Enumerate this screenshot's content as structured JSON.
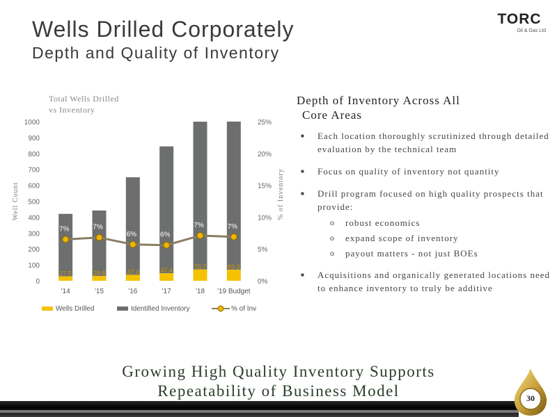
{
  "slide": {
    "title": "Wells Drilled Corporately",
    "subtitle": "Depth and Quality of Inventory",
    "page_number": "30",
    "footer": [
      "Growing High Quality Inventory Supports",
      "Repeatability of Business Model"
    ]
  },
  "logo": {
    "name": "TORC",
    "sub": "Oil & Gas Ltd"
  },
  "right_panel": {
    "heading_line1": "Depth of Inventory Across All",
    "heading_line2": "Core Areas",
    "bullets": [
      "Each location thoroughly scrutinized through detailed evaluation by the technical team",
      "Focus on quality of inventory not quantity",
      "Drill program focused on high quality prospects that provide:",
      "Acquisitions and organically generated locations need to enhance inventory to truly be additive"
    ],
    "sub_bullets": [
      "robust economics",
      "expand scope of inventory",
      "payout matters - not just BOEs"
    ]
  },
  "colors": {
    "wells": "#f5c200",
    "inventory": "#6d6f6e",
    "pct_line": "#8a7c62",
    "pct_marker": "#f0b400"
  },
  "chart_data": {
    "type": "bar",
    "title": "Total Wells Drilled vs Inventory",
    "title_lines": [
      "Total Wells Drilled",
      "vs Inventory"
    ],
    "categories": [
      "'14",
      "'15",
      "'16",
      "'17",
      "'18",
      "'19 Budget"
    ],
    "stacked": true,
    "series": [
      {
        "name": "Wells Drilled",
        "type": "bar",
        "values": [
          27.5,
          29.8,
          37.3,
          47.4,
          70.7,
          69.3
        ]
      },
      {
        "name": "Identified Inventory",
        "type": "bar",
        "values": [
          393,
          412,
          613,
          797,
          929,
          931
        ]
      },
      {
        "name": "% of Inv",
        "type": "line",
        "axis": "right",
        "values": [
          6.5,
          6.8,
          5.7,
          5.6,
          7.1,
          6.9
        ],
        "labels": [
          "7%",
          "7%",
          "6%",
          "6%",
          "7%",
          "7%"
        ]
      }
    ],
    "ylabel": "Well Count",
    "y2label": "% of Inventory",
    "ylim": [
      0,
      1000
    ],
    "y2lim": [
      0,
      25
    ],
    "yticks": [
      "0",
      "100",
      "200",
      "300",
      "400",
      "500",
      "600",
      "700",
      "800",
      "900",
      "1000"
    ],
    "y2ticks": [
      "0%",
      "5%",
      "10%",
      "15%",
      "20%",
      "25%"
    ],
    "legend_position": "bottom",
    "grid": false
  }
}
